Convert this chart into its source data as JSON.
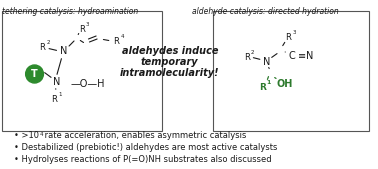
{
  "bg_color": "#ffffff",
  "title_left": "tethering catalysis: hydroamination",
  "title_right": "aldehyde catalysis: directed hydration",
  "center_text_line1": "aldehydes induce",
  "center_text_line2": "temporary",
  "center_text_line3": "intramolecularity!",
  "bullet1": "• >10",
  "bullet1_super": "4",
  "bullet1_rest": " rate acceleration, enables asymmetric catalysis",
  "bullet2": "• Destabilized (prebiotic!) aldehydes are most active catalysts",
  "bullet3": "• Hydrolyses reactions of P(=O)NH substrates also discussed",
  "green_dark": "#2d7a2d",
  "green_circle": "#2d8a2d",
  "black": "#1a1a1a",
  "gray_light": "#e0e0e0",
  "box_color": "#e8e8e8"
}
